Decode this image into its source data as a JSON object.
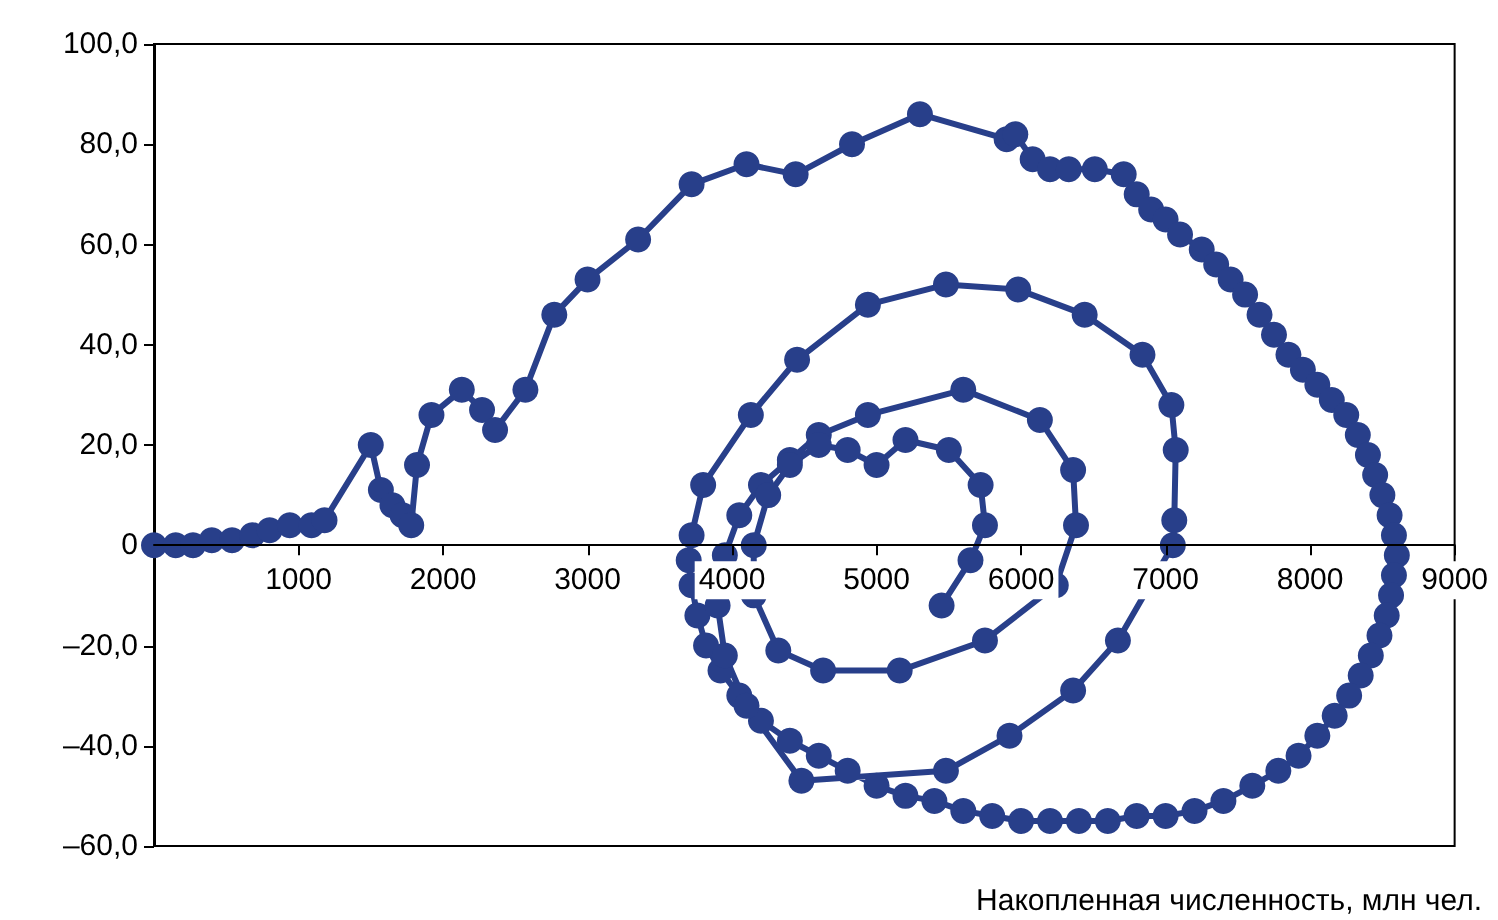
{
  "chart_data": {
    "type": "line",
    "xlabel": "Накопленная численность, млн чел.",
    "xlim": [
      0,
      9000
    ],
    "xticks": [
      1000,
      2000,
      3000,
      4000,
      5000,
      6000,
      7000,
      8000,
      9000
    ],
    "ylim": [
      -60,
      100
    ],
    "yticks": [
      {
        "value": -60,
        "label": "–60,0"
      },
      {
        "value": -40,
        "label": "–40,0"
      },
      {
        "value": -20,
        "label": "–20,0"
      },
      {
        "value": 0,
        "label": "0"
      },
      {
        "value": 20,
        "label": "20,0"
      },
      {
        "value": 40,
        "label": "40,0"
      },
      {
        "value": 60,
        "label": "60,0"
      },
      {
        "value": 80,
        "label": "80,0"
      },
      {
        "value": 100,
        "label": "100,0"
      }
    ],
    "grid": false,
    "marker": "circle",
    "line_style": "solid",
    "series": [
      {
        "color": "#283f8a",
        "x": [
          0,
          150,
          270,
          400,
          540,
          680,
          800,
          940,
          1090,
          1180,
          1500,
          1570,
          1650,
          1720,
          1780,
          1820,
          1920,
          2130,
          2270,
          2360,
          2570,
          2770,
          3000,
          3350,
          3720,
          4100,
          4440,
          4830,
          5300,
          5900,
          5960,
          6080,
          6200,
          6330,
          6510,
          6710,
          6800,
          6900,
          7000,
          7100,
          7250,
          7350,
          7450,
          7550,
          7650,
          7750,
          7850,
          7950,
          8050,
          8150,
          8250,
          8330,
          8400,
          8450,
          8500,
          8550,
          8580,
          8600,
          8580,
          8560,
          8530,
          8480,
          8420,
          8350,
          8270,
          8170,
          8050,
          7920,
          7780,
          7600,
          7400,
          7200,
          7000,
          6800,
          6600,
          6400,
          6200,
          6000,
          5800,
          5600,
          5400,
          5200,
          5000,
          4800,
          4600,
          4400,
          4200,
          4050,
          3920,
          3820,
          3760,
          3720,
          3700,
          3720,
          3800,
          4130,
          4450,
          4940,
          5480,
          5980,
          6440,
          6840,
          7040,
          7070,
          7060,
          7050,
          6670,
          6360,
          5920,
          5480,
          4480,
          4100,
          3950,
          3900,
          3950,
          4050,
          4200,
          4400,
          4600,
          4940,
          5600,
          6130,
          6360,
          6380,
          6240,
          5750,
          5160,
          4630,
          4320,
          4150,
          4150,
          4250,
          4400,
          4600,
          4800,
          5000,
          5200,
          5500,
          5720,
          5750,
          5650,
          5450
        ],
        "values": [
          0,
          0,
          0,
          1,
          1,
          2,
          3,
          4,
          4,
          5,
          20,
          11,
          8,
          6,
          4,
          16,
          26,
          31,
          27,
          23,
          31,
          46,
          53,
          61,
          72,
          76,
          74,
          80,
          86,
          81,
          82,
          77,
          75,
          75,
          75,
          74,
          70,
          67,
          65,
          62,
          59,
          56,
          53,
          50,
          46,
          42,
          38,
          35,
          32,
          29,
          26,
          22,
          18,
          14,
          10,
          6,
          2,
          -2,
          -6,
          -10,
          -14,
          -18,
          -22,
          -26,
          -30,
          -34,
          -38,
          -42,
          -45,
          -48,
          -51,
          -53,
          -54,
          -54,
          -55,
          -55,
          -55,
          -55,
          -54,
          -53,
          -51,
          -50,
          -48,
          -45,
          -42,
          -39,
          -35,
          -30,
          -25,
          -20,
          -14,
          -8,
          -3,
          2,
          12,
          26,
          37,
          48,
          52,
          51,
          46,
          38,
          28,
          19,
          5,
          0,
          -19,
          -29,
          -38,
          -45,
          -47,
          -32,
          -22,
          -12,
          -2,
          6,
          12,
          17,
          22,
          26,
          31,
          25,
          15,
          4,
          -8,
          -19,
          -25,
          -25,
          -21,
          -10,
          0,
          10,
          16,
          20,
          19,
          16,
          21,
          19,
          12,
          4,
          -3,
          -12
        ]
      }
    ]
  }
}
